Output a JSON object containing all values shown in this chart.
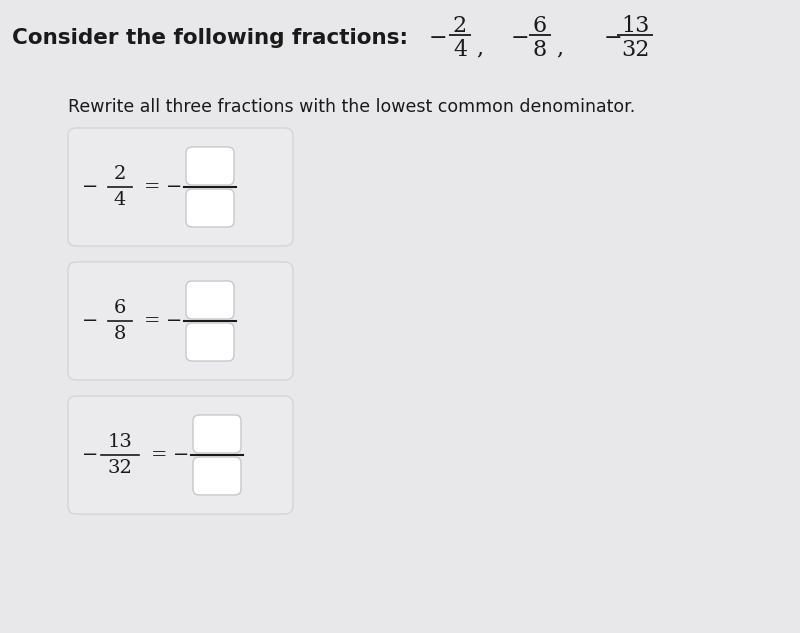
{
  "background_color": "#e8e8eb",
  "title_bold": "Consider the following fractions:",
  "title_fractions": [
    {
      "num": "2",
      "den": "4"
    },
    {
      "num": "6",
      "den": "8"
    },
    {
      "num": "13",
      "den": "32"
    }
  ],
  "subtitle": "Rewrite all three fractions with the lowest common denominator.",
  "boxes": [
    {
      "num": "2",
      "den": "4"
    },
    {
      "num": "6",
      "den": "8"
    },
    {
      "num": "13",
      "den": "32"
    }
  ],
  "card_bg": "#ebebee",
  "input_box_bg": "#ffffff",
  "input_box_border": "#c8c8cc",
  "text_color": "#1a1a1a",
  "fig_width": 8.0,
  "fig_height": 6.33
}
